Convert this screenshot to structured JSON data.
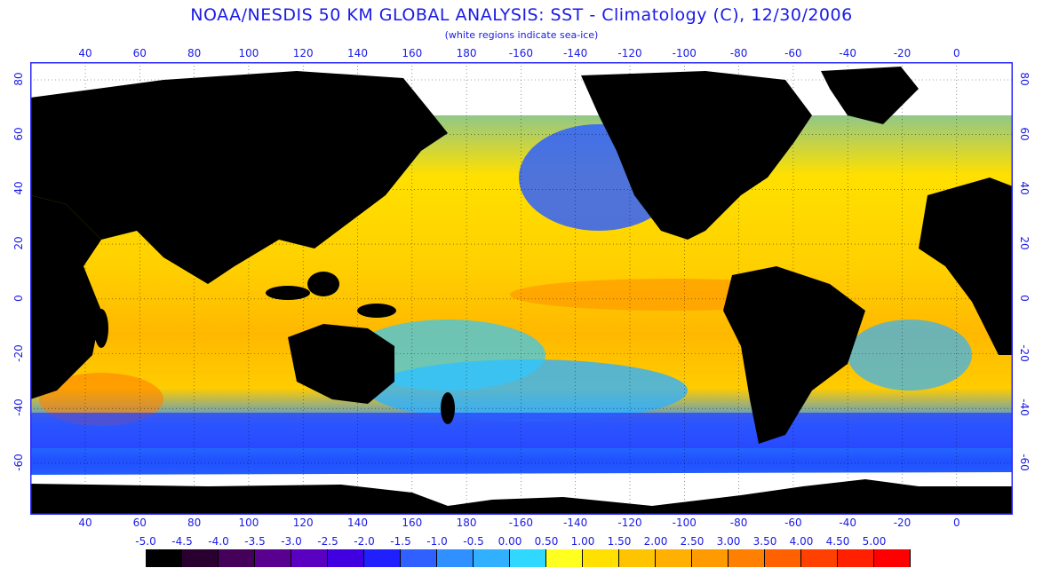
{
  "title": "NOAA/NESDIS 50 KM GLOBAL ANALYSIS: SST - Climatology (C), 12/30/2006",
  "subtitle": "(white regions indicate sea-ice)",
  "x_ticks": [
    "40",
    "60",
    "80",
    "100",
    "120",
    "140",
    "160",
    "180",
    "-160",
    "-140",
    "-120",
    "-100",
    "-80",
    "-60",
    "-40",
    "-20",
    "0"
  ],
  "y_ticks": [
    "80",
    "60",
    "40",
    "20",
    "0",
    "-20",
    "-40",
    "-60"
  ],
  "legend": {
    "labels": [
      "-5.0",
      "-4.5",
      "-4.0",
      "-3.5",
      "-3.0",
      "-2.5",
      "-2.0",
      "-1.5",
      "-1.0",
      "-0.5",
      "0.00",
      "0.50",
      "1.00",
      "1.50",
      "2.00",
      "2.50",
      "3.00",
      "3.50",
      "4.00",
      "4.50",
      "5.00"
    ],
    "colors": [
      "#000000",
      "#2a0030",
      "#45005a",
      "#5a0090",
      "#5a00c0",
      "#4000e0",
      "#2020ff",
      "#3060ff",
      "#3090ff",
      "#30b0ff",
      "#30d8ff",
      "#ffff20",
      "#ffe000",
      "#ffc400",
      "#ffb000",
      "#ff9a00",
      "#ff8000",
      "#ff6000",
      "#ff4000",
      "#ff2000",
      "#ff0000"
    ]
  },
  "map_colors": {
    "land": "#000000",
    "ice": "#ffffff",
    "border": "#2a2aff"
  }
}
